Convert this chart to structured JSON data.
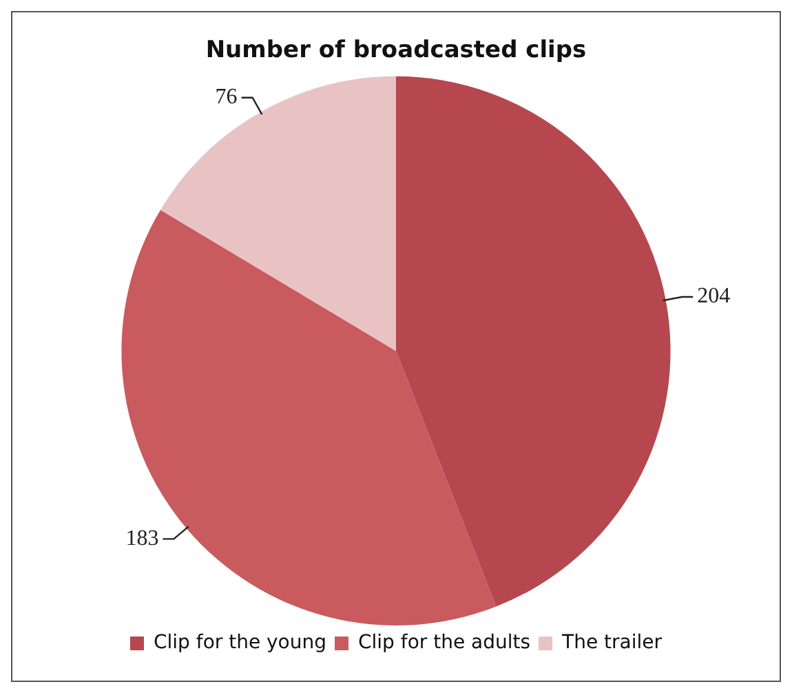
{
  "chart_data": {
    "type": "pie",
    "title": "Number of broadcasted clips",
    "categories": [
      "Clip for the young",
      "Clip for the adults",
      "The trailer"
    ],
    "values": [
      204,
      183,
      76
    ],
    "colors": [
      "#b6474f",
      "#c95a5e",
      "#e9c3c4"
    ],
    "data_labels": true,
    "legend": "bottom"
  }
}
